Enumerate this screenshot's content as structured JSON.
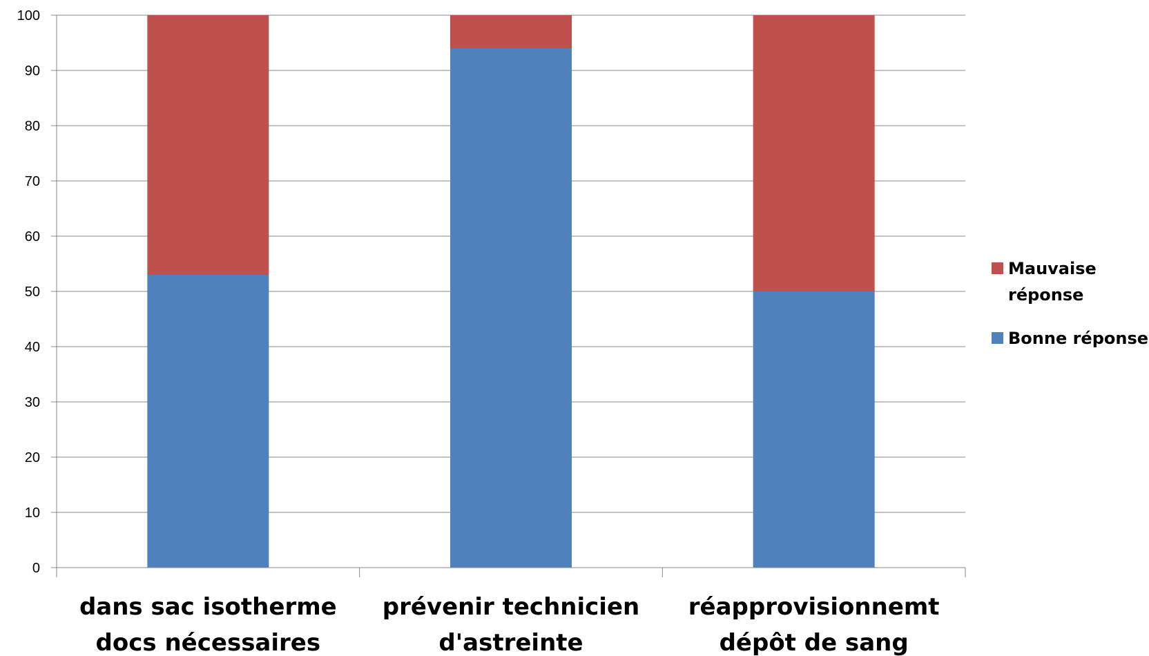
{
  "chart_data": {
    "type": "bar",
    "stacked": true,
    "categories": [
      [
        "dans sac isotherme",
        "docs nécessaires"
      ],
      [
        "prévenir technicien",
        "d'astreinte"
      ],
      [
        "réapprovisionnemt",
        "dépôt de sang"
      ]
    ],
    "series": [
      {
        "name": "Bonne réponse",
        "values": [
          53,
          94,
          50
        ],
        "color": "#4F81BD"
      },
      {
        "name": "Mauvaise réponse",
        "values": [
          47,
          6,
          50
        ],
        "color": "#C0504D"
      }
    ],
    "ylim": [
      0,
      100
    ],
    "yticks": [
      0,
      10,
      20,
      30,
      40,
      50,
      60,
      70,
      80,
      90,
      100
    ],
    "grid": true,
    "legend": {
      "placement": "right",
      "entries": [
        {
          "lines": [
            "Mauvaise",
            "réponse"
          ],
          "color": "#C0504D"
        },
        {
          "lines": [
            "Bonne réponse"
          ],
          "color": "#4F81BD"
        }
      ]
    },
    "title": "",
    "xlabel": "",
    "ylabel": ""
  }
}
